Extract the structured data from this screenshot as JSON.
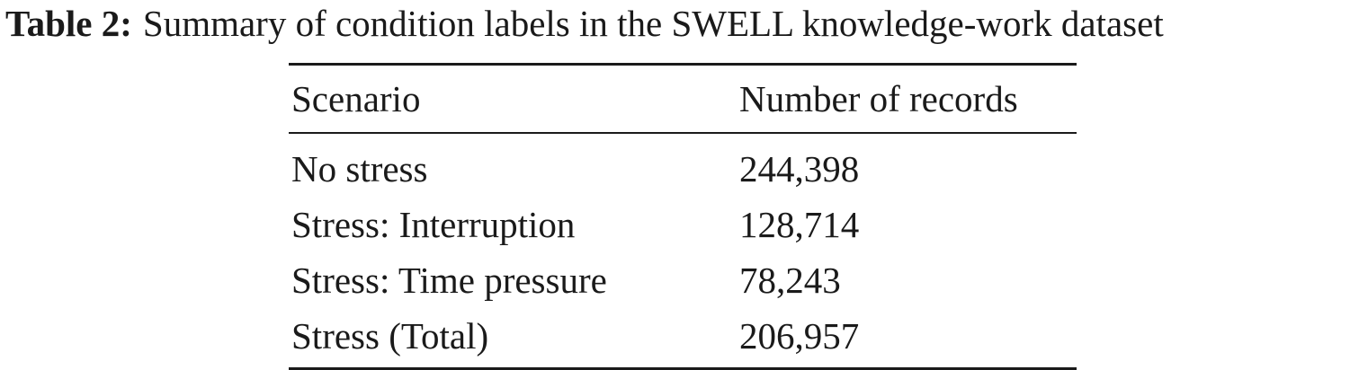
{
  "caption": {
    "label": "Table 2:",
    "text": "Summary of condition labels in the SWELL knowledge-work dataset"
  },
  "table": {
    "headers": [
      "Scenario",
      "Number of records"
    ],
    "rows": [
      [
        "No stress",
        "244,398"
      ],
      [
        "Stress: Interruption",
        "128,714"
      ],
      [
        "Stress: Time pressure",
        "78,243"
      ],
      [
        "Stress (Total)",
        "206,957"
      ]
    ]
  }
}
